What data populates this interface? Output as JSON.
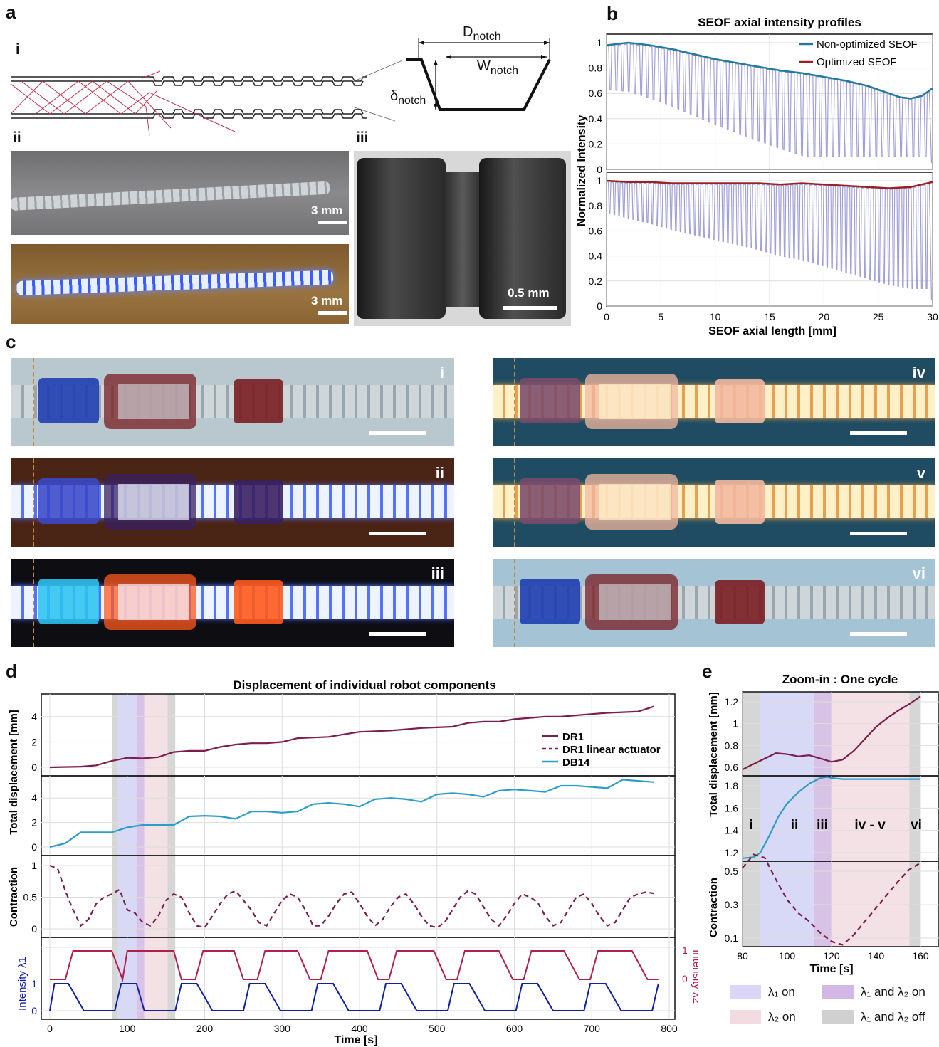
{
  "panels": {
    "a": "a",
    "b": "b",
    "c": "c",
    "d": "d",
    "e": "e"
  },
  "panel_a": {
    "sub_i": "i",
    "sub_ii": "ii",
    "sub_iii": "iii",
    "d_notch": "D",
    "d_notch_sub": "notch",
    "w_notch": "W",
    "w_notch_sub": "notch",
    "delta_notch": "δ",
    "delta_notch_sub": "notch",
    "scale_3mm_1": "3 mm",
    "scale_3mm_2": "3 mm",
    "scale_05mm": "0.5 mm",
    "colors": {
      "ray": "#c0304a",
      "glow": "#4a7bff"
    }
  },
  "panel_c": {
    "labels": [
      "i",
      "ii",
      "iii",
      "iv",
      "v",
      "vi"
    ],
    "colors": {
      "blue_block": "#1b3bb0",
      "red_block": "#7a1e22",
      "orange": "#ff5a1c",
      "bg_gray": "#b9c7cf",
      "bg_brown": "#4a2414",
      "bg_black": "#0d0d12",
      "bg_teal": "#1f4c62"
    }
  },
  "colors": {
    "blue_series": "#2378a0",
    "red_series": "#9a2024",
    "lavender": "#8888cc",
    "dr1": "#7a1e4e",
    "db14": "#2a9ec8",
    "lambda1": "#1020a0",
    "lambda2": "#b0204a",
    "shade_l1": "#c8c8f4",
    "shade_l2": "#f0d4dc",
    "shade_both": "#c8a8dc",
    "shade_off": "#c4c4c4"
  },
  "chart_data": [
    {
      "type": "line",
      "title": "SEOF axial intensity profiles",
      "xlabel": "SEOF axial length [mm]",
      "ylabel": "Normalized Intensity",
      "xlim": [
        0,
        30
      ],
      "ylim": [
        0,
        1
      ],
      "x_ticks": [
        "0",
        "5",
        "10",
        "15",
        "20",
        "25",
        "30"
      ],
      "y_ticks": [
        "0",
        "0.2",
        "0.4",
        "0.6",
        "0.8",
        "1"
      ],
      "series": [
        {
          "name": "Non-optimized SEOF",
          "x": [
            0,
            1,
            2,
            4,
            6,
            8,
            10,
            12,
            14,
            16,
            18,
            20,
            22,
            24,
            26,
            27,
            28,
            29,
            30
          ],
          "values": [
            0.98,
            0.99,
            1.0,
            0.98,
            0.95,
            0.91,
            0.87,
            0.84,
            0.81,
            0.78,
            0.76,
            0.73,
            0.7,
            0.66,
            0.6,
            0.57,
            0.56,
            0.58,
            0.64
          ]
        },
        {
          "name": "Optimized SEOF",
          "x": [
            0,
            2,
            4,
            6,
            8,
            10,
            12,
            14,
            16,
            18,
            20,
            22,
            24,
            26,
            28,
            30
          ],
          "values": [
            1.0,
            0.99,
            0.99,
            0.98,
            0.98,
            0.98,
            0.98,
            0.98,
            0.97,
            0.98,
            0.97,
            0.96,
            0.95,
            0.94,
            0.95,
            0.99
          ]
        }
      ]
    },
    {
      "type": "line",
      "title": "Displacement of individual robot components",
      "xlabel": "Time [s]",
      "xlim": [
        0,
        800
      ],
      "x_ticks": [
        "0",
        "100",
        "200",
        "300",
        "400",
        "500",
        "600",
        "700",
        "800"
      ],
      "subplots": [
        {
          "ylabel": "Total displacement [mm]",
          "ylim": [
            0,
            5
          ],
          "y_ticks": [
            "0",
            "2",
            "4"
          ],
          "series": [
            {
              "name": "DR1",
              "x": [
                0,
                40,
                60,
                80,
                100,
                120,
                140,
                160,
                180,
                200,
                220,
                240,
                260,
                280,
                300,
                320,
                340,
                360,
                380,
                400,
                420,
                440,
                460,
                480,
                500,
                520,
                540,
                560,
                580,
                600,
                620,
                640,
                660,
                680,
                700,
                720,
                740,
                760,
                780
              ],
              "values": [
                0,
                0.05,
                0.15,
                0.5,
                0.75,
                0.7,
                0.8,
                1.2,
                1.3,
                1.3,
                1.6,
                1.8,
                1.9,
                1.9,
                2.0,
                2.3,
                2.35,
                2.4,
                2.6,
                2.8,
                2.85,
                2.9,
                3.0,
                3.1,
                3.15,
                3.2,
                3.5,
                3.6,
                3.6,
                3.8,
                3.9,
                4.0,
                4.0,
                4.1,
                4.2,
                4.3,
                4.35,
                4.4,
                4.8
              ]
            }
          ]
        },
        {
          "ylabel": "Total displacement [mm]",
          "ylim": [
            0,
            5
          ],
          "y_ticks": [
            "0",
            "2",
            "4"
          ],
          "series": [
            {
              "name": "DB14",
              "x": [
                0,
                20,
                40,
                60,
                80,
                100,
                120,
                140,
                160,
                180,
                200,
                220,
                240,
                260,
                280,
                300,
                320,
                340,
                360,
                380,
                400,
                420,
                440,
                460,
                480,
                500,
                520,
                540,
                560,
                580,
                600,
                620,
                640,
                660,
                680,
                700,
                720,
                740,
                760,
                780
              ],
              "values": [
                0,
                0.3,
                1.2,
                1.2,
                1.2,
                1.6,
                1.8,
                1.8,
                1.8,
                2.5,
                2.55,
                2.5,
                2.3,
                2.9,
                2.9,
                2.8,
                2.9,
                3.5,
                3.6,
                3.5,
                3.3,
                3.9,
                4.0,
                3.9,
                3.7,
                4.3,
                4.4,
                4.3,
                4.1,
                4.6,
                4.7,
                4.6,
                4.5,
                5.0,
                5.0,
                4.9,
                4.8,
                5.5,
                5.4,
                5.3
              ]
            }
          ]
        },
        {
          "ylabel": "Contraction",
          "ylim": [
            0,
            1
          ],
          "y_ticks": [
            "0",
            "0.5",
            "1"
          ],
          "series": [
            {
              "name": "DR1 linear actuator",
              "x": [
                0,
                10,
                20,
                30,
                40,
                50,
                60,
                70,
                80,
                90,
                100,
                110,
                120,
                130,
                140,
                150,
                160,
                170,
                180,
                190,
                200,
                210,
                220,
                230,
                240,
                250,
                260,
                270,
                280,
                290,
                300,
                310,
                320,
                330,
                340,
                350,
                360,
                370,
                380,
                390,
                400,
                410,
                420,
                430,
                440,
                450,
                460,
                470,
                480,
                490,
                500,
                510,
                520,
                530,
                540,
                550,
                560,
                570,
                580,
                590,
                600,
                610,
                620,
                630,
                640,
                650,
                660,
                670,
                680,
                690,
                700,
                710,
                720,
                730,
                740,
                750,
                760,
                770,
                780
              ],
              "values": [
                1.0,
                0.95,
                0.6,
                0.3,
                0.05,
                0.15,
                0.4,
                0.5,
                0.55,
                0.62,
                0.3,
                0.25,
                0.1,
                0.05,
                0.2,
                0.45,
                0.55,
                0.5,
                0.25,
                0.05,
                0.02,
                0.2,
                0.4,
                0.55,
                0.6,
                0.45,
                0.3,
                0.1,
                0.05,
                0.25,
                0.45,
                0.55,
                0.5,
                0.3,
                0.05,
                0.05,
                0.2,
                0.4,
                0.55,
                0.58,
                0.4,
                0.2,
                0.05,
                0.15,
                0.35,
                0.5,
                0.55,
                0.4,
                0.2,
                0.05,
                0.02,
                0.1,
                0.3,
                0.5,
                0.6,
                0.55,
                0.35,
                0.15,
                0.05,
                0.2,
                0.4,
                0.55,
                0.5,
                0.42,
                0.2,
                0.05,
                0.1,
                0.3,
                0.5,
                0.55,
                0.4,
                0.2,
                0.05,
                0.1,
                0.3,
                0.5,
                0.55,
                0.58,
                0.56
              ]
            }
          ]
        },
        {
          "ylabel_left": "Intensity λ1",
          "ylabel_right": "Intensity λ2",
          "ylim": [
            0,
            1
          ],
          "y_ticks": [
            "0",
            "1"
          ],
          "series": [
            {
              "name": "λ1",
              "x": [
                0,
                6,
                24,
                44,
                84,
                92,
                112,
                122,
                162,
                170,
                190,
                210,
                250,
                258,
                278,
                298,
                338,
                346,
                366,
                386,
                426,
                434,
                454,
                474,
                514,
                522,
                542,
                562,
                602,
                610,
                630,
                650,
                690,
                698,
                718,
                738,
                778,
                786
              ],
              "values": [
                0,
                1,
                1,
                0,
                0,
                1,
                1,
                0,
                0,
                1,
                1,
                0,
                0,
                1,
                1,
                0,
                0,
                1,
                1,
                0,
                0,
                1,
                1,
                0,
                0,
                1,
                1,
                0,
                0,
                1,
                1,
                0,
                0,
                1,
                1,
                0,
                0,
                1
              ]
            },
            {
              "name": "λ2",
              "x": [
                0,
                20,
                30,
                80,
                94,
                100,
                160,
                170,
                188,
                198,
                238,
                250,
                268,
                278,
                320,
                336,
                350,
                360,
                410,
                424,
                438,
                448,
                496,
                512,
                526,
                536,
                580,
                598,
                612,
                622,
                664,
                684,
                698,
                708,
                752,
                772,
                786
              ],
              "values": [
                0,
                0,
                1,
                1,
                0,
                1,
                1,
                0,
                0,
                1,
                1,
                0,
                0,
                1,
                1,
                0,
                0,
                1,
                1,
                0,
                0,
                1,
                1,
                0,
                0,
                1,
                1,
                0,
                0,
                1,
                1,
                0,
                0,
                1,
                1,
                0,
                0
              ]
            }
          ]
        }
      ]
    },
    {
      "type": "line",
      "title": "Zoom-in : One cycle",
      "xlabel": "Time [s]",
      "xlim": [
        80,
        160
      ],
      "x_ticks": [
        "80",
        "100",
        "120",
        "140",
        "160"
      ],
      "phase_labels": [
        "i",
        "ii",
        "iii",
        "iv - v",
        "vi"
      ],
      "subplots": [
        {
          "ylabel": "Total displacement [mm]",
          "ylim": [
            0.6,
            1.2
          ],
          "y_ticks": [
            "0.6",
            "0.8",
            "1",
            "1.2"
          ],
          "series": [
            {
              "name": "DR1",
              "x": [
                80,
                85,
                90,
                95,
                100,
                105,
                110,
                115,
                120,
                125,
                130,
                135,
                140,
                145,
                150,
                155,
                160
              ],
              "values": [
                0.58,
                0.63,
                0.68,
                0.73,
                0.72,
                0.7,
                0.71,
                0.68,
                0.65,
                0.67,
                0.75,
                0.86,
                0.97,
                1.05,
                1.12,
                1.18,
                1.25
              ]
            }
          ]
        },
        {
          "ylabel": "Total displacement [mm]",
          "ylim": [
            1.2,
            1.8
          ],
          "y_ticks": [
            "1.2",
            "1.4",
            "1.6",
            "1.8"
          ],
          "series": [
            {
              "name": "DB14",
              "x": [
                80,
                85,
                88,
                92,
                96,
                100,
                105,
                110,
                115,
                118,
                120,
                125,
                130,
                140,
                150,
                160
              ],
              "values": [
                1.15,
                1.16,
                1.2,
                1.35,
                1.52,
                1.64,
                1.74,
                1.82,
                1.87,
                1.88,
                1.87,
                1.86,
                1.86,
                1.86,
                1.86,
                1.86
              ]
            }
          ]
        },
        {
          "ylabel": "Contraction",
          "ylim": [
            0.1,
            0.5
          ],
          "y_ticks": [
            "0.1",
            "0.3",
            "0.5"
          ],
          "series": [
            {
              "name": "DR1 linear actuator",
              "x": [
                80,
                85,
                90,
                95,
                100,
                105,
                110,
                115,
                120,
                125,
                130,
                135,
                140,
                145,
                150,
                155,
                160
              ],
              "values": [
                0.52,
                0.6,
                0.58,
                0.45,
                0.33,
                0.25,
                0.2,
                0.13,
                0.08,
                0.06,
                0.12,
                0.2,
                0.28,
                0.36,
                0.44,
                0.51,
                0.55
              ]
            }
          ]
        }
      ]
    }
  ],
  "legend_d": [
    "DR1",
    "DR1 linear actuator",
    "DB14"
  ],
  "legend_e": {
    "l1_on": "λ₁ on",
    "l1_l2_on": "λ₁ and λ₂ on",
    "l2_on": "λ₂ on",
    "l1_l2_off": "λ₁ and λ₂ off"
  }
}
